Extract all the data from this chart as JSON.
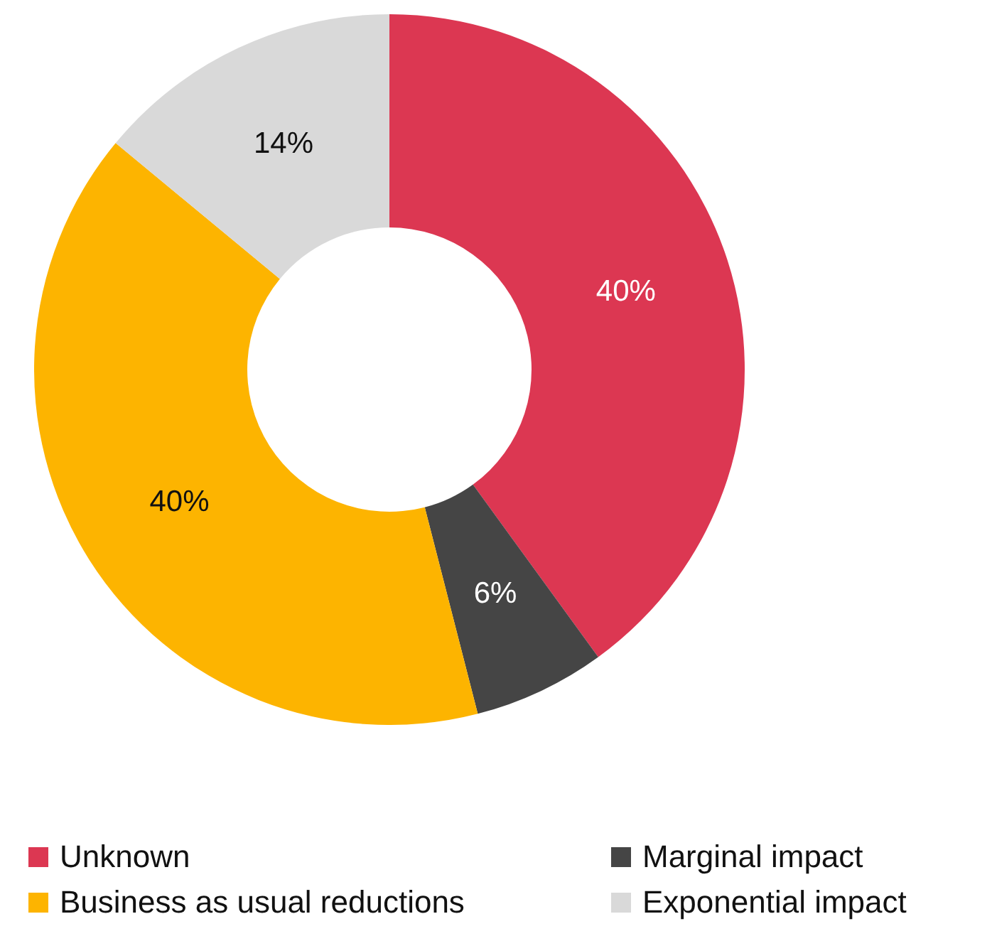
{
  "chart_data": {
    "type": "donut",
    "categories": [
      "Unknown",
      "Marginal impact",
      "Business as usual reductions",
      "Exponential impact"
    ],
    "values": [
      40,
      6,
      40,
      14
    ],
    "colors": [
      "#dc3752",
      "#454545",
      "#fdb400",
      "#d9d9d9"
    ],
    "value_labels": [
      "40%",
      "6%",
      "40%",
      "14%"
    ],
    "legend": "bottom"
  }
}
